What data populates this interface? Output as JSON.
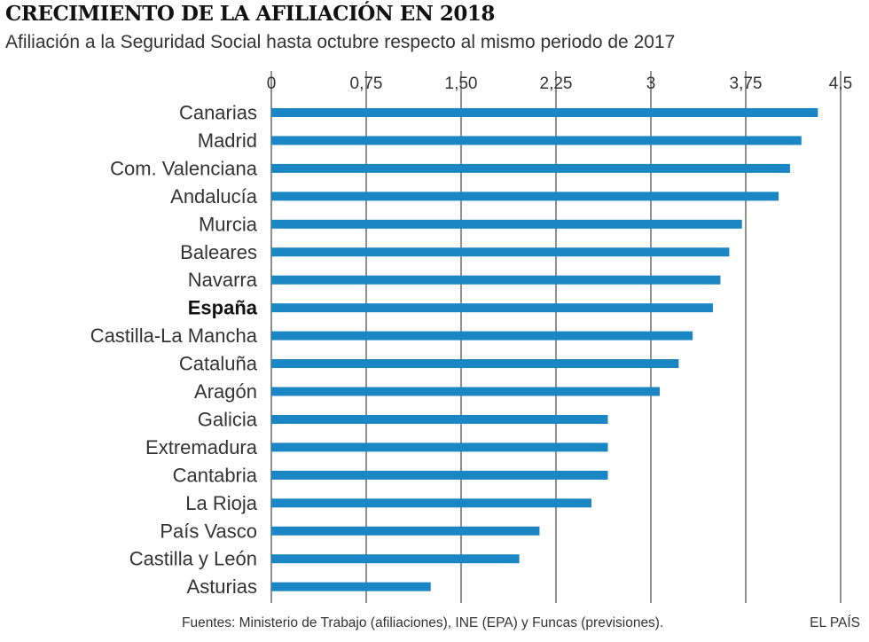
{
  "title": "CRECIMIENTO DE LA AFILIACIÓN EN 2018",
  "subtitle": "Afiliación a la Seguridad Social hasta octubre respecto al mismo periodo de 2017",
  "source": "Fuentes: Ministerio de Trabajo (afiliaciones), INE (EPA) y Funcas (previsiones).",
  "brand": "EL PAÍS",
  "colors": {
    "bar": "#1a86c3",
    "grid": "#222222",
    "text": "#333333",
    "highlight_text": "#111111"
  },
  "chart_data": {
    "type": "bar",
    "orientation": "horizontal",
    "title": "CRECIMIENTO DE LA AFILIACIÓN EN 2018",
    "subtitle": "Afiliación a la Seguridad Social hasta octubre respecto al mismo periodo de 2017",
    "xlabel": "",
    "ylabel": "",
    "xlim": [
      0,
      4.5
    ],
    "ticks": [
      0,
      0.75,
      1.5,
      2.25,
      3,
      3.75,
      4.5
    ],
    "tick_labels": [
      "0",
      "0,75",
      "1,50",
      "2,25",
      "3",
      "3,75",
      "4,5"
    ],
    "grid": true,
    "axis_position": "top",
    "highlight": "España",
    "categories": [
      "Canarias",
      "Madrid",
      "Com. Valenciana",
      "Andalucía",
      "Murcia",
      "Baleares",
      "Navarra",
      "España",
      "Castilla-La Mancha",
      "Cataluña",
      "Aragón",
      "Galicia",
      "Extremadura",
      "Cantabria",
      "La Rioja",
      "País Vasco",
      "Castilla y León",
      "Asturias"
    ],
    "values": [
      4.32,
      4.19,
      4.1,
      4.01,
      3.72,
      3.62,
      3.55,
      3.49,
      3.33,
      3.22,
      3.07,
      2.66,
      2.66,
      2.66,
      2.53,
      2.12,
      1.96,
      1.26
    ]
  }
}
